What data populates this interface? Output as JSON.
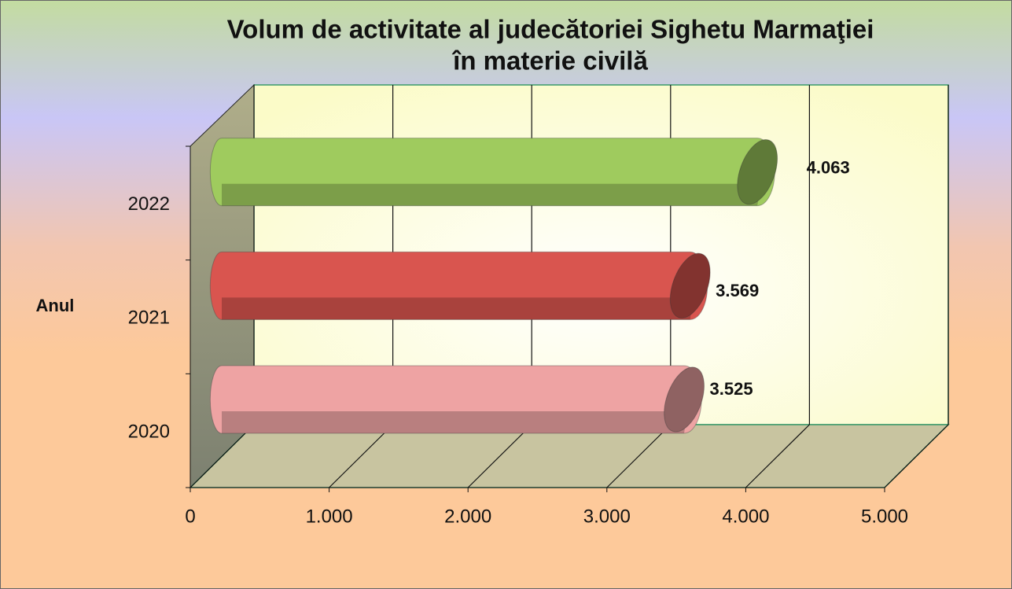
{
  "chart_data": {
    "type": "bar3d-horizontal",
    "title": [
      "Volum de activitate al judecătoriei Sighetu Marmaţiei",
      "în materie civilă"
    ],
    "y_label": "Anul",
    "categories": [
      "2020",
      "2021",
      "2022"
    ],
    "values": [
      3525,
      3569,
      4063
    ],
    "value_labels": [
      "3.525",
      "3.569",
      "4.063"
    ],
    "colors": [
      "#eea3a3",
      "#d9554f",
      "#9fcb5e"
    ],
    "xlim": [
      0,
      5000
    ],
    "xticks": [
      0,
      {
        "value": 1000,
        "label": "1.000"
      },
      {
        "value": 2000,
        "label": "2.000"
      },
      {
        "value": 3000,
        "label": "3.000"
      },
      {
        "value": 4000,
        "label": "4.000"
      },
      {
        "value": 5000,
        "label": "5.000"
      }
    ],
    "grid": true
  }
}
